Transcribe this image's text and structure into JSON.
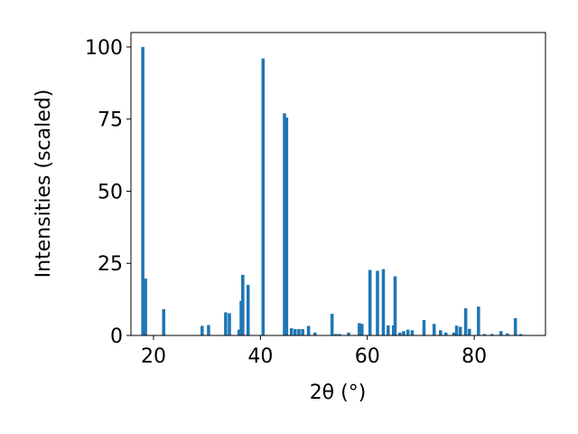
{
  "chart_data": {
    "type": "bar",
    "xlabel": "2θ (°)",
    "ylabel": "Intensities (scaled)",
    "color": "#1f77b4",
    "x": [
      18.0,
      18.5,
      21.9,
      29.1,
      30.3,
      33.5,
      34.2,
      36.0,
      36.4,
      36.7,
      37.7,
      40.5,
      44.5,
      44.9,
      45.8,
      46.5,
      47.2,
      47.9,
      49.0,
      50.2,
      53.4,
      54.1,
      54.8,
      56.5,
      58.5,
      59.0,
      60.5,
      61.9,
      63.0,
      63.9,
      64.9,
      65.2,
      66.1,
      66.8,
      67.6,
      68.4,
      70.6,
      72.5,
      73.7,
      74.7,
      76.2,
      76.7,
      77.4,
      78.4,
      79.1,
      80.8,
      81.9,
      83.3,
      85.0,
      86.2,
      87.7,
      88.7
    ],
    "values": [
      100,
      19.7,
      9.1,
      3.3,
      3.6,
      8,
      7.7,
      2,
      12,
      21,
      17.5,
      96,
      77,
      75.5,
      2.5,
      2.2,
      2.2,
      2.2,
      3.3,
      1,
      7.5,
      0.5,
      0.5,
      1,
      4.3,
      4,
      22.7,
      22.4,
      23,
      3.5,
      3.5,
      20.5,
      1,
      1.5,
      2,
      1.8,
      5.3,
      4,
      1.8,
      1,
      1,
      3.4,
      3,
      9.4,
      2.3,
      10,
      0.5,
      0.5,
      1.5,
      0.7,
      6,
      0.5
    ],
    "xlim": [
      15.78,
      93.33
    ],
    "ylim": [
      0,
      105
    ],
    "xticks": [
      20,
      40,
      60,
      80
    ],
    "yticks": [
      0,
      25,
      50,
      75,
      100
    ]
  }
}
